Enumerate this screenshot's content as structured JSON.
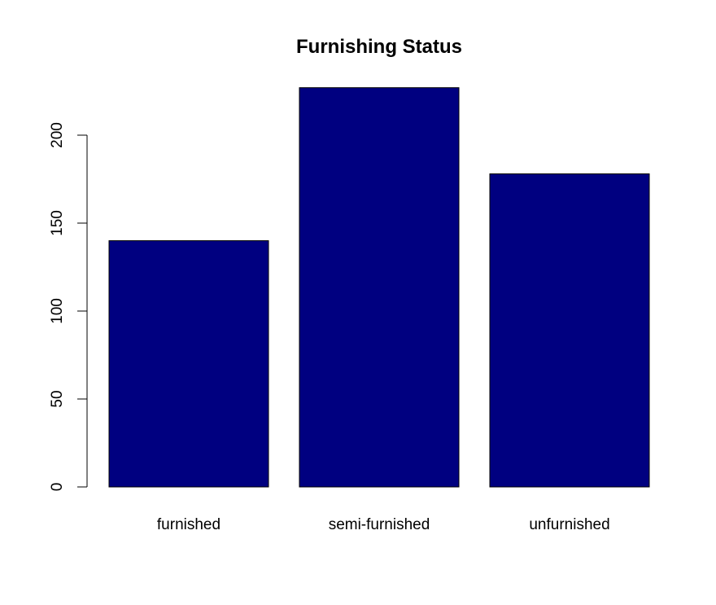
{
  "chart_data": {
    "type": "bar",
    "title": "Furnishing Status",
    "xlabel": "",
    "ylabel": "",
    "categories": [
      "furnished",
      "semi-furnished",
      "unfurnished"
    ],
    "values": [
      140,
      227,
      178
    ],
    "ylim": [
      0,
      227
    ],
    "yticks": [
      0,
      50,
      100,
      150,
      200
    ],
    "bar_color": "#000080",
    "bar_border_color": "#000000",
    "grid": false,
    "legend": "none"
  }
}
